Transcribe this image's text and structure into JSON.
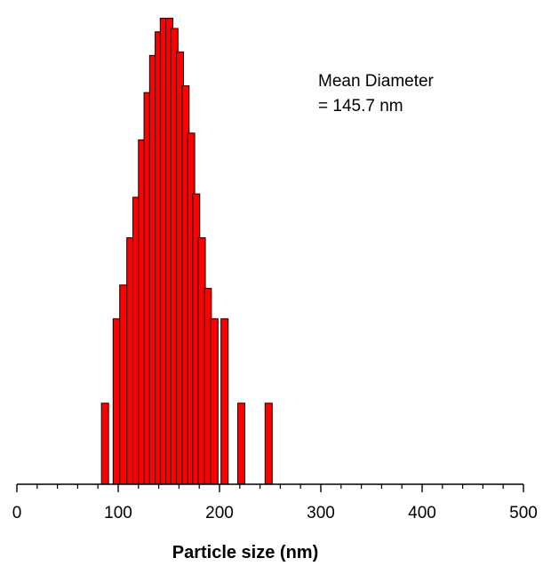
{
  "chart_data": {
    "type": "bar",
    "title": "",
    "xlabel": "Particle size (nm)",
    "ylabel": "",
    "xlim": [
      0,
      500
    ],
    "x_ticks": [
      0,
      100,
      200,
      300,
      400,
      500
    ],
    "x_minor_step": 20,
    "y_axis_shown": false,
    "grid": false,
    "legend": "none",
    "annotation": {
      "lines": [
        "Mean Diameter",
        "= 145.7 nm"
      ],
      "placement": "top-right"
    },
    "bar_color": "#ff0000",
    "bar_edge_color": "#000000",
    "bar_width_nm": 7,
    "y_unit_note": "relative frequency (unlabeled)",
    "bars": [
      {
        "x": 87.0,
        "y": 24
      },
      {
        "x": 98.5,
        "y": 49
      },
      {
        "x": 105.0,
        "y": 59
      },
      {
        "x": 112.0,
        "y": 73
      },
      {
        "x": 118.0,
        "y": 85
      },
      {
        "x": 123.5,
        "y": 102
      },
      {
        "x": 129.0,
        "y": 116
      },
      {
        "x": 134.5,
        "y": 127
      },
      {
        "x": 140.0,
        "y": 134
      },
      {
        "x": 145.0,
        "y": 138
      },
      {
        "x": 150.5,
        "y": 138
      },
      {
        "x": 155.5,
        "y": 135
      },
      {
        "x": 161.0,
        "y": 128
      },
      {
        "x": 166.5,
        "y": 118
      },
      {
        "x": 172.0,
        "y": 104
      },
      {
        "x": 177.0,
        "y": 86
      },
      {
        "x": 182.5,
        "y": 73
      },
      {
        "x": 188.5,
        "y": 58
      },
      {
        "x": 195.0,
        "y": 49
      },
      {
        "x": 205.0,
        "y": 49
      },
      {
        "x": 221.5,
        "y": 24
      },
      {
        "x": 248.5,
        "y": 24
      }
    ]
  }
}
